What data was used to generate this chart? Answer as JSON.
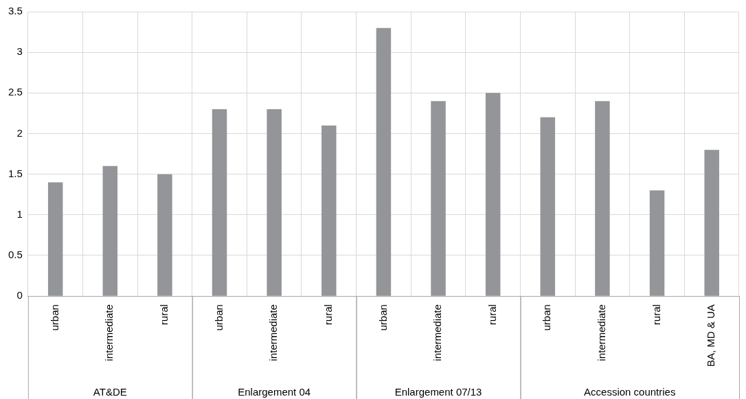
{
  "chart_data": {
    "type": "bar",
    "categories": [
      "urban",
      "intermediate",
      "rural",
      "urban",
      "intermediate",
      "rural",
      "urban",
      "intermediate",
      "rural",
      "urban",
      "intermediate",
      "rural",
      "BA, MD & UA"
    ],
    "values": [
      1.4,
      1.6,
      1.5,
      2.3,
      2.3,
      2.1,
      3.3,
      2.4,
      2.5,
      2.2,
      2.4,
      1.3,
      1.8
    ],
    "color": "#939598",
    "ylim": [
      0,
      3.5
    ],
    "yticks": [
      0,
      0.5,
      1,
      1.5,
      2,
      2.5,
      3,
      3.5
    ],
    "grid": true,
    "legend": false,
    "annotations": [
      "AT&DE",
      "Enlargement 04",
      "Enlargement 07/13",
      "Accession countries"
    ]
  }
}
